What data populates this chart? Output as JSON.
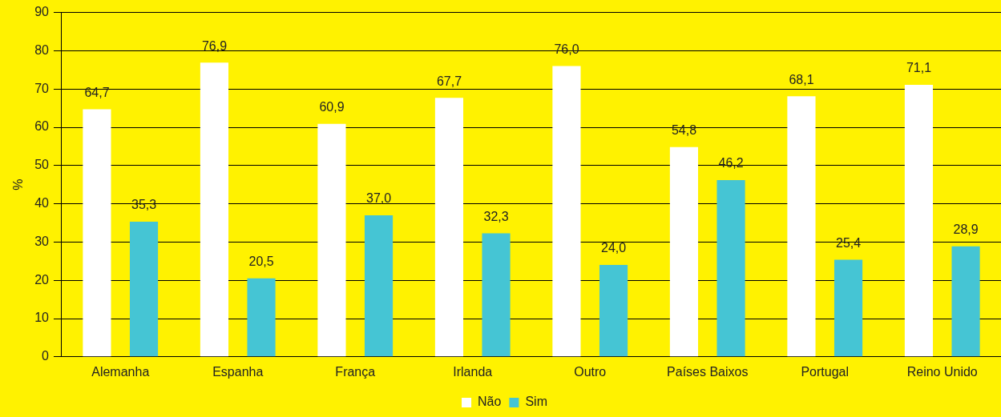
{
  "chart_data": {
    "type": "bar",
    "ylabel": "%",
    "categories": [
      "Alemanha",
      "Espanha",
      "França",
      "Irlanda",
      "Outro",
      "Países Baixos",
      "Portugal",
      "Reino Unido"
    ],
    "series": [
      {
        "name": "Não",
        "color": "#ffffff",
        "values": [
          64.7,
          76.9,
          60.9,
          67.7,
          76.0,
          54.8,
          68.1,
          71.1
        ],
        "value_labels": [
          "64,7",
          "76,9",
          "60,9",
          "67,7",
          "76,0",
          "54,8",
          "68,1",
          "71,1"
        ]
      },
      {
        "name": "Sim",
        "color": "#45c5d4",
        "values": [
          35.3,
          20.5,
          37.0,
          32.3,
          24.0,
          46.2,
          25.4,
          28.9
        ],
        "value_labels": [
          "35,3",
          "20,5",
          "37,0",
          "32,3",
          "24,0",
          "46,2",
          "25,4",
          "28,9"
        ]
      }
    ],
    "ylim": [
      0,
      90
    ],
    "yticks": [
      0,
      10,
      20,
      30,
      40,
      50,
      60,
      70,
      80,
      90
    ],
    "grid": "y",
    "legend": "bottom"
  }
}
